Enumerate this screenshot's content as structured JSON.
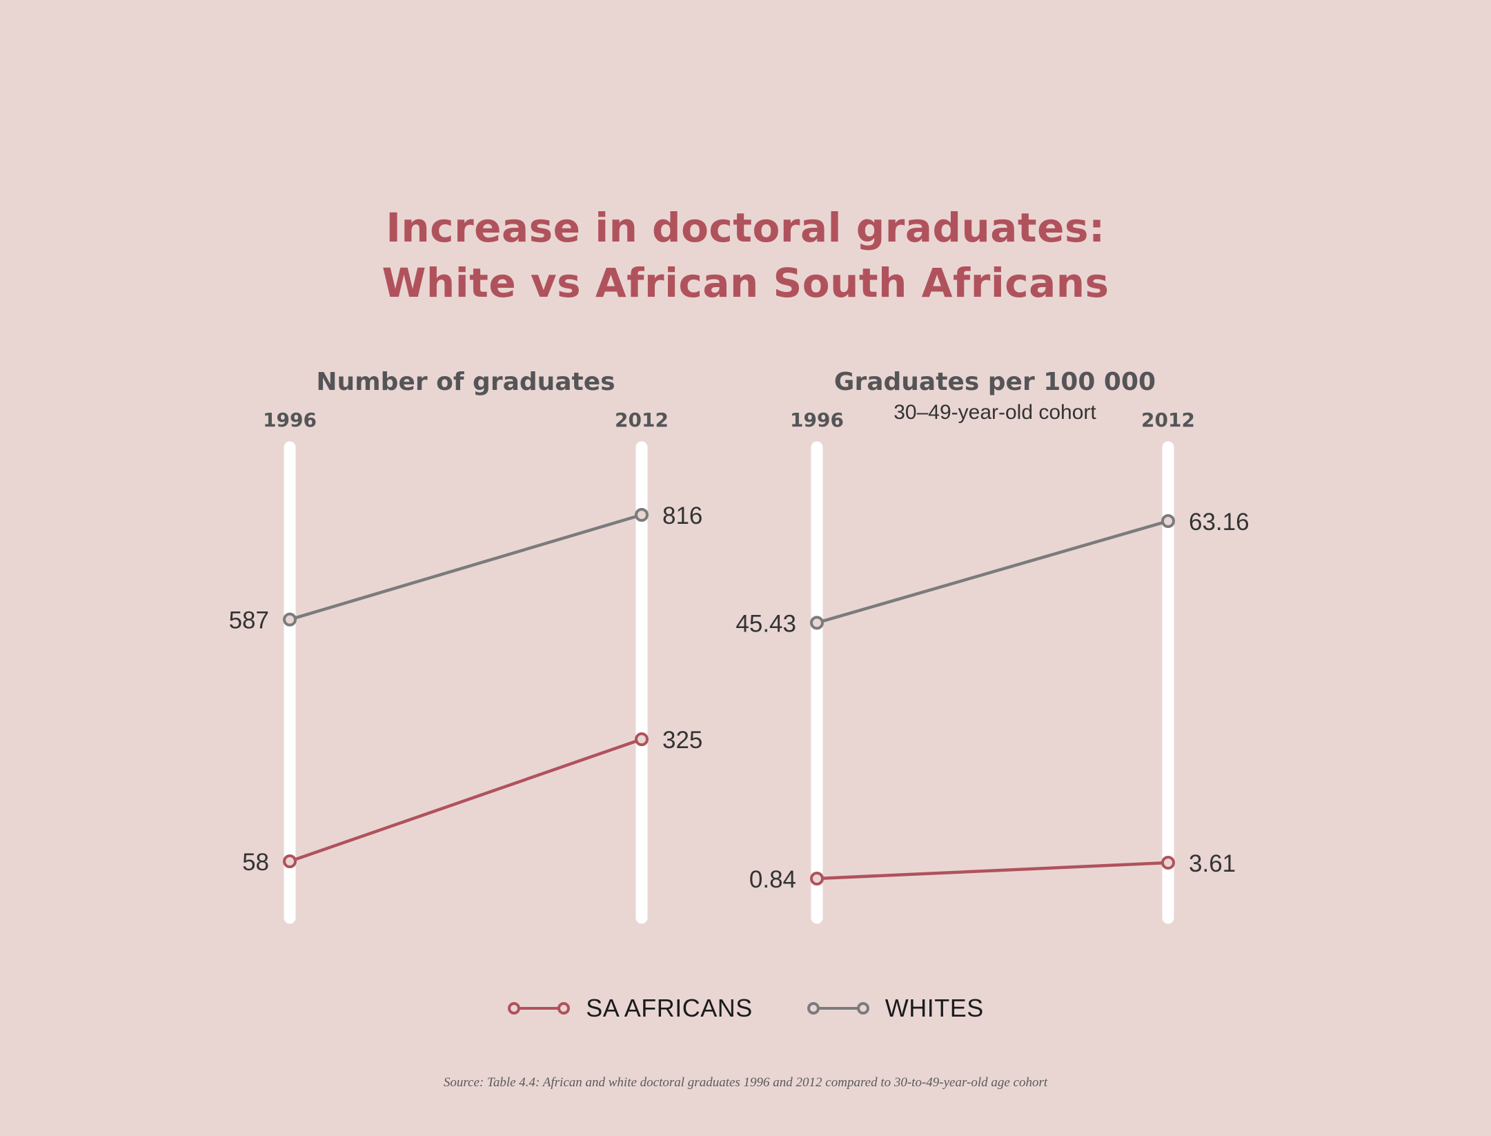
{
  "title": {
    "line1": "Increase in doctoral graduates:",
    "line2": "White vs African South Africans"
  },
  "colors": {
    "background": "#e9d6d3",
    "sa_africans": "#b0525c",
    "whites": "#7b7b7d",
    "axis": "#ffffff",
    "heading": "#555558",
    "label": "#333333"
  },
  "chart_data": [
    {
      "type": "line",
      "title": "Number of graduates",
      "subtitle": "",
      "x": [
        "1996",
        "2012"
      ],
      "series": [
        {
          "name": "WHITES",
          "values": [
            587,
            816
          ]
        },
        {
          "name": "SA AFRICANS",
          "values": [
            58,
            325
          ]
        }
      ],
      "value_labels": [
        [
          "587",
          "816"
        ],
        [
          "58",
          "325"
        ]
      ],
      "grid": false
    },
    {
      "type": "line",
      "title": "Graduates per 100 000",
      "subtitle": "30–49-year-old cohort",
      "x": [
        "1996",
        "2012"
      ],
      "series": [
        {
          "name": "WHITES",
          "values": [
            45.43,
            63.16
          ]
        },
        {
          "name": "SA AFRICANS",
          "values": [
            0.84,
            3.61
          ]
        }
      ],
      "value_labels": [
        [
          "45.43",
          "63.16"
        ],
        [
          "0.84",
          "3.61"
        ]
      ],
      "grid": false
    }
  ],
  "legend": [
    {
      "label": "SA AFRICANS",
      "color": "#b0525c"
    },
    {
      "label": "WHITES",
      "color": "#7b7b7d"
    }
  ],
  "source": "Source: Table 4.4: African and white doctoral graduates 1996 and 2012 compared to 30-to-49-year-old age cohort"
}
